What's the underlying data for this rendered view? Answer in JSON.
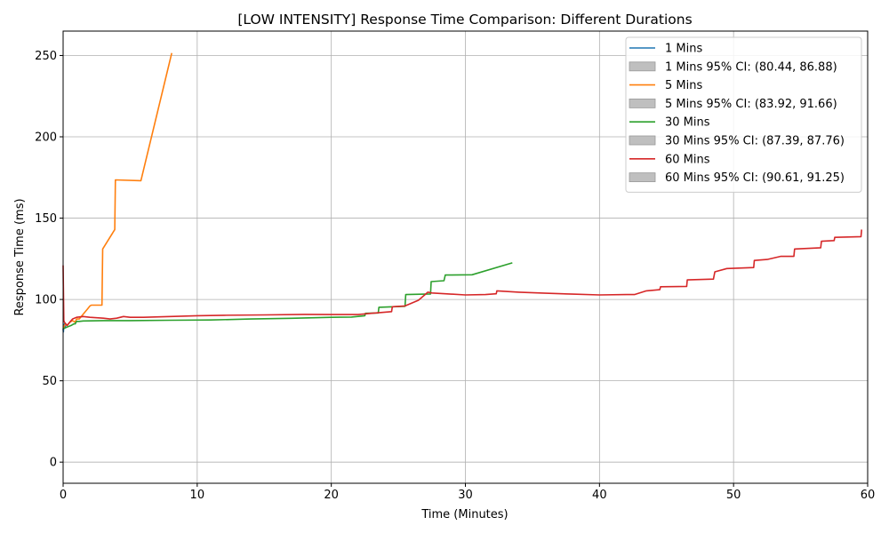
{
  "chart_data": {
    "type": "line",
    "title": "[LOW INTENSITY] Response Time Comparison: Different Durations",
    "xlabel": "Time (Minutes)",
    "ylabel": "Response Time (ms)",
    "xlim": [
      0,
      60
    ],
    "ylim": [
      -13,
      265
    ],
    "xticks": [
      0,
      10,
      20,
      30,
      40,
      50,
      60
    ],
    "yticks": [
      0,
      50,
      100,
      150,
      200,
      250
    ],
    "grid": true,
    "legend_position": "top-right",
    "ci_color": "#bfbfbf",
    "series": [
      {
        "name": "1 Mins",
        "color": "#1f77b4",
        "x": [
          0,
          0.02,
          0.05,
          0.1,
          0.15,
          0.2
        ],
        "y": [
          82,
          80,
          84,
          85,
          83,
          84
        ]
      },
      {
        "name": "5 Mins",
        "color": "#ff7f0e",
        "x": [
          0,
          0.1,
          0.2,
          0.3,
          0.5,
          0.7,
          0.9,
          1.0,
          1.2,
          1.5,
          1.8,
          2.0,
          2.1,
          2.9,
          2.95,
          3.85,
          3.9,
          5.8,
          8.1
        ],
        "y": [
          82,
          84,
          85,
          84,
          86,
          87,
          86,
          88,
          88,
          91,
          94,
          96,
          96.5,
          96.5,
          131,
          143,
          173.5,
          173,
          251.5
        ]
      },
      {
        "name": "30 Mins",
        "color": "#2ca02c",
        "x": [
          0,
          0.3,
          0.6,
          0.8,
          0.9,
          1.0,
          1.2,
          1.5,
          3,
          5,
          8,
          11,
          14,
          17,
          20,
          21.5,
          22.5,
          22.55,
          23.5,
          23.55,
          25.5,
          25.55,
          27.4,
          27.45,
          28.4,
          28.5,
          30.5,
          33.5
        ],
        "y": [
          82,
          83,
          84,
          85,
          85,
          86.5,
          86.5,
          86.8,
          87,
          87,
          87.2,
          87.4,
          88,
          88.4,
          89,
          89.2,
          90,
          91.5,
          91.7,
          95.2,
          95.8,
          103,
          103.4,
          111,
          111.5,
          115,
          115.2,
          122.5
        ]
      },
      {
        "name": "60 Mins",
        "color": "#d62728",
        "x": [
          0,
          0.05,
          0.1,
          0.2,
          0.3,
          0.5,
          0.7,
          1,
          1.5,
          2,
          3,
          3.5,
          4,
          4.5,
          5,
          6,
          8,
          10,
          12,
          15,
          18,
          20,
          22,
          23,
          24.5,
          24.55,
          25.5,
          26.5,
          27.2,
          27.5,
          28.5,
          30,
          31.5,
          32.3,
          32.35,
          34,
          36,
          38,
          40,
          42,
          42.6,
          43.5,
          44.5,
          44.55,
          46.5,
          46.55,
          48.5,
          48.6,
          49.5,
          51.5,
          51.55,
          52.5,
          53.5,
          54.5,
          54.55,
          56.5,
          56.55,
          57.5,
          57.55,
          59.5,
          59.55
        ],
        "y": [
          121,
          87,
          86,
          85,
          84,
          86,
          88,
          89,
          89.5,
          89,
          88.5,
          88,
          88.5,
          89.5,
          89,
          89,
          89.5,
          90,
          90.3,
          90.5,
          90.8,
          90.7,
          90.7,
          91.5,
          92.5,
          95.5,
          96,
          99.5,
          104.5,
          104,
          103.5,
          102.8,
          103,
          103.5,
          105.3,
          104.5,
          103.8,
          103.3,
          102.8,
          103,
          103,
          105.3,
          106,
          107.8,
          108,
          112,
          112.5,
          117,
          119,
          119.6,
          124,
          124.6,
          126.5,
          126.5,
          131,
          131.8,
          135.8,
          136.2,
          138.2,
          138.6,
          143
        ]
      }
    ],
    "legend": [
      {
        "label": "1 Mins",
        "kind": "line",
        "color": "#1f77b4"
      },
      {
        "label": "1 Mins 95% CI: (80.44, 86.88)",
        "kind": "patch",
        "color": "#bfbfbf"
      },
      {
        "label": "5 Mins",
        "kind": "line",
        "color": "#ff7f0e"
      },
      {
        "label": "5 Mins 95% CI: (83.92, 91.66)",
        "kind": "patch",
        "color": "#bfbfbf"
      },
      {
        "label": "30 Mins",
        "kind": "line",
        "color": "#2ca02c"
      },
      {
        "label": "30 Mins 95% CI: (87.39, 87.76)",
        "kind": "patch",
        "color": "#bfbfbf"
      },
      {
        "label": "60 Mins",
        "kind": "line",
        "color": "#d62728"
      },
      {
        "label": "60 Mins 95% CI: (90.61, 91.25)",
        "kind": "patch",
        "color": "#bfbfbf"
      }
    ]
  }
}
